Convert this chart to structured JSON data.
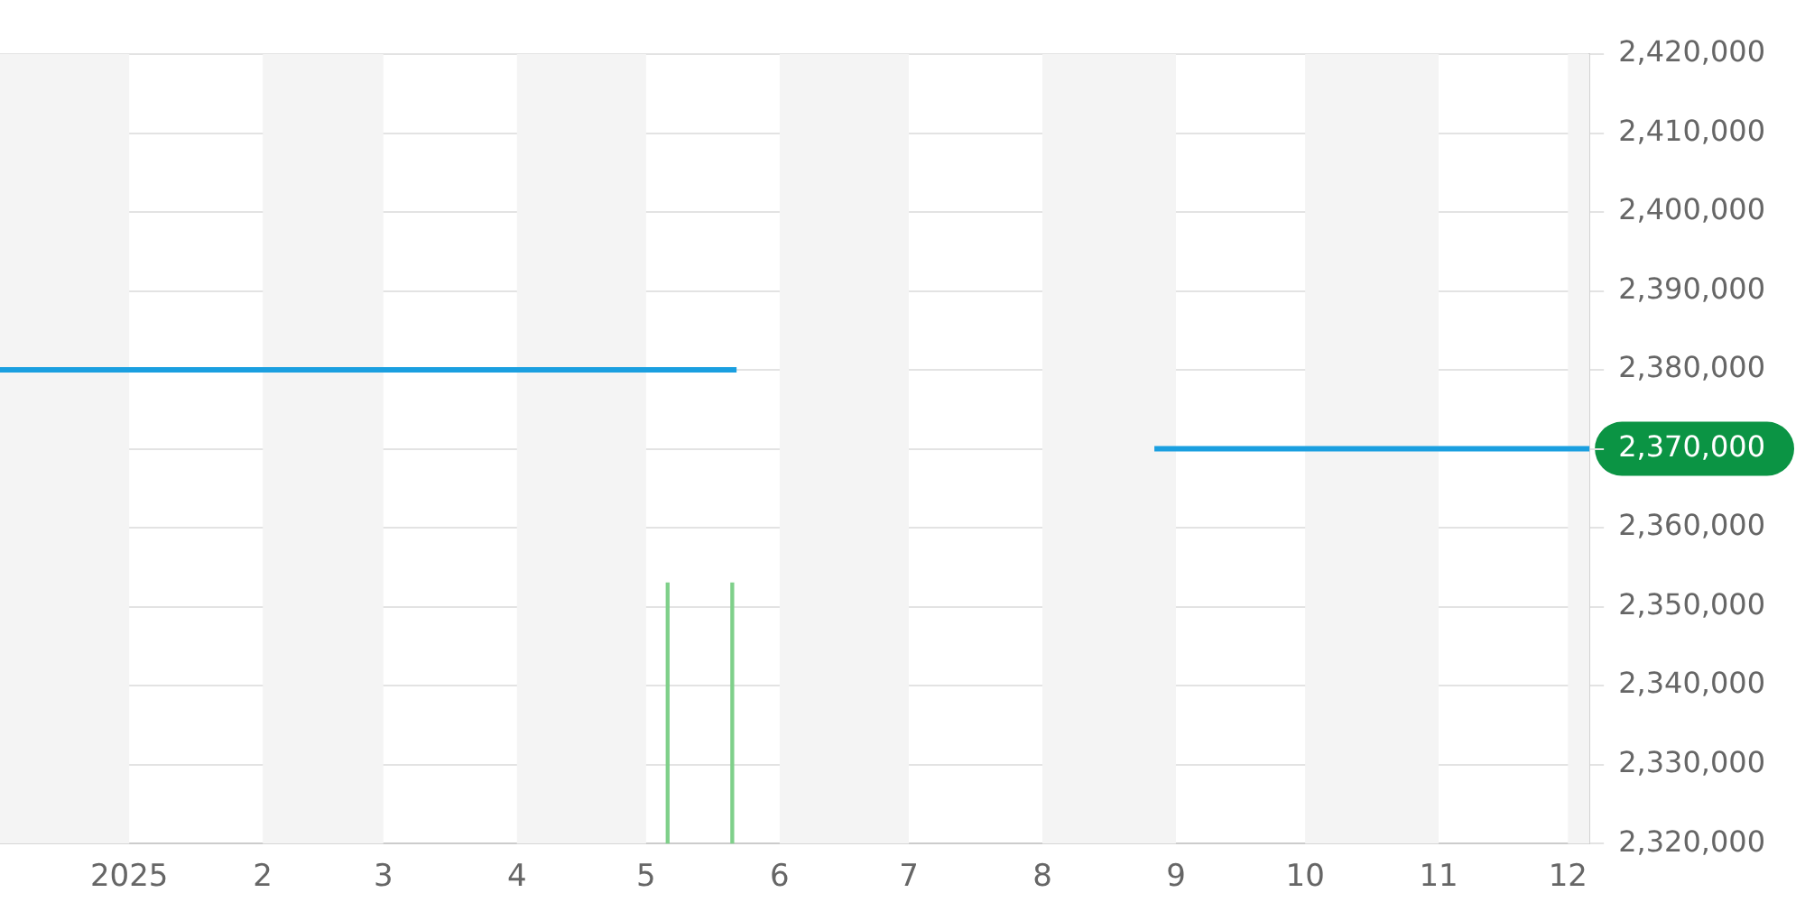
{
  "chart_data": {
    "type": "line",
    "series": [
      {
        "color": "#1a9fe0",
        "x": [
          "2024-12-02",
          "2025-05-22",
          "2025-07-10",
          "2025-08-27",
          "2025-12-06"
        ],
        "values": [
          2380000,
          2380000,
          null,
          2370000,
          2370000
        ]
      },
      {
        "type": "bar",
        "color": "#7fd08a",
        "x": [
          "2025-05-06",
          "2025-05-21"
        ],
        "values": [
          2353000,
          2353000
        ]
      }
    ],
    "xlim": [
      "2024-12-02",
      "2025-12-06"
    ],
    "xticks": [
      {
        "value": "2025-01-01",
        "label": "2025"
      },
      {
        "value": "2025-02-01",
        "label": "2"
      },
      {
        "value": "2025-03-01",
        "label": "3"
      },
      {
        "value": "2025-04-01",
        "label": "4"
      },
      {
        "value": "2025-05-01",
        "label": "5"
      },
      {
        "value": "2025-06-01",
        "label": "6"
      },
      {
        "value": "2025-07-01",
        "label": "7"
      },
      {
        "value": "2025-08-01",
        "label": "8"
      },
      {
        "value": "2025-09-01",
        "label": "9"
      },
      {
        "value": "2025-10-01",
        "label": "10"
      },
      {
        "value": "2025-11-01",
        "label": "11"
      },
      {
        "value": "2025-12-01",
        "label": "12"
      }
    ],
    "ylim": [
      2320000,
      2420000
    ],
    "yticks": [
      {
        "value": 2320000,
        "label": "2,320,000"
      },
      {
        "value": 2330000,
        "label": "2,330,000"
      },
      {
        "value": 2340000,
        "label": "2,340,000"
      },
      {
        "value": 2350000,
        "label": "2,350,000"
      },
      {
        "value": 2360000,
        "label": "2,360,000"
      },
      {
        "value": 2370000,
        "label": "2,370,000"
      },
      {
        "value": 2380000,
        "label": "2,380,000"
      },
      {
        "value": 2390000,
        "label": "2,390,000"
      },
      {
        "value": 2400000,
        "label": "2,400,000"
      },
      {
        "value": 2410000,
        "label": "2,410,000"
      },
      {
        "value": 2420000,
        "label": "2,420,000"
      }
    ],
    "bands": [
      {
        "axis": "x",
        "from": "2024-12-02",
        "to": "2025-01-01",
        "color": "#f4f4f4"
      },
      {
        "axis": "x",
        "from": "2025-02-01",
        "to": "2025-03-01",
        "color": "#f4f4f4"
      },
      {
        "axis": "x",
        "from": "2025-04-01",
        "to": "2025-05-01",
        "color": "#f4f4f4"
      },
      {
        "axis": "x",
        "from": "2025-06-01",
        "to": "2025-07-01",
        "color": "#f4f4f4"
      },
      {
        "axis": "x",
        "from": "2025-08-01",
        "to": "2025-09-01",
        "color": "#f4f4f4"
      },
      {
        "axis": "x",
        "from": "2025-10-01",
        "to": "2025-11-01",
        "color": "#f4f4f4"
      },
      {
        "axis": "x",
        "from": "2025-12-01",
        "to": "2025-12-06",
        "color": "#f4f4f4"
      }
    ],
    "grid": "y",
    "legend": false,
    "marker": "none",
    "line_style": "solid"
  }
}
